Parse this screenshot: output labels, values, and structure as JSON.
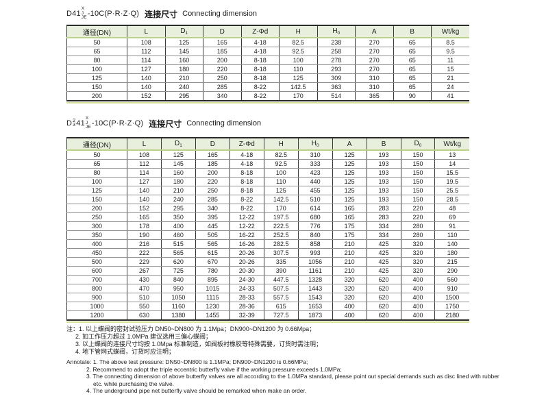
{
  "colors": {
    "header_bg": "#e8f0dd",
    "header_underline": "#b9d287",
    "table_end_bar": "#d4e29c",
    "border_dark": "#2a2a2a",
    "row_line": "#8f8f8f"
  },
  "table1": {
    "model": {
      "prefix": "D41",
      "variants": [
        "X",
        "J",
        "JE"
      ],
      "suffix": "-10C(P·R·Z·Q)"
    },
    "title_cn": "连接尺寸",
    "title_en": "Connecting dimension",
    "headers": [
      "通径(DN)",
      "L",
      "D₁",
      "D",
      "Z-Φd",
      "H",
      "H₀",
      "A",
      "B",
      "Wt/kg"
    ],
    "rows": [
      [
        "50",
        "108",
        "125",
        "165",
        "4-18",
        "82.5",
        "238",
        "270",
        "65",
        "8.5"
      ],
      [
        "65",
        "112",
        "145",
        "185",
        "4-18",
        "92.5",
        "258",
        "270",
        "65",
        "9.5"
      ],
      [
        "80",
        "114",
        "160",
        "200",
        "8-18",
        "100",
        "278",
        "270",
        "65",
        "11"
      ],
      [
        "100",
        "127",
        "180",
        "220",
        "8-18",
        "110",
        "293",
        "270",
        "65",
        "15"
      ],
      [
        "125",
        "140",
        "210",
        "250",
        "8-18",
        "125",
        "309",
        "310",
        "65",
        "21"
      ],
      [
        "150",
        "140",
        "240",
        "285",
        "8-22",
        "142.5",
        "363",
        "310",
        "65",
        "24"
      ],
      [
        "200",
        "152",
        "295",
        "340",
        "8-22",
        "170",
        "514",
        "365",
        "90",
        "41"
      ]
    ]
  },
  "table2": {
    "model": {
      "prefix": "D",
      "nums": [
        "2",
        "3"
      ],
      "mid": "41",
      "variants": [
        "X",
        "J",
        "JE"
      ],
      "suffix": "-10C(P·R·Z·Q)"
    },
    "title_cn": "连接尺寸",
    "title_en": "Connecting dimension",
    "headers": [
      "通径(DN)",
      "L",
      "D₁",
      "D",
      "Z-Φd",
      "H",
      "H₀",
      "A",
      "B",
      "D₀",
      "Wt/kg"
    ],
    "rows": [
      [
        "50",
        "108",
        "125",
        "165",
        "4-18",
        "82.5",
        "310",
        "125",
        "193",
        "150",
        "13"
      ],
      [
        "65",
        "112",
        "145",
        "185",
        "4-18",
        "92.5",
        "333",
        "125",
        "193",
        "150",
        "14"
      ],
      [
        "80",
        "114",
        "160",
        "200",
        "8-18",
        "100",
        "423",
        "125",
        "193",
        "150",
        "15.5"
      ],
      [
        "100",
        "127",
        "180",
        "220",
        "8-18",
        "110",
        "440",
        "125",
        "193",
        "150",
        "19.5"
      ],
      [
        "125",
        "140",
        "210",
        "250",
        "8-18",
        "125",
        "455",
        "125",
        "193",
        "150",
        "25.5"
      ],
      [
        "150",
        "140",
        "240",
        "285",
        "8-22",
        "142.5",
        "510",
        "125",
        "193",
        "150",
        "28.5"
      ],
      [
        "200",
        "152",
        "295",
        "340",
        "8-22",
        "170",
        "614",
        "165",
        "283",
        "220",
        "48"
      ],
      [
        "250",
        "165",
        "350",
        "395",
        "12-22",
        "197.5",
        "680",
        "165",
        "283",
        "220",
        "69"
      ],
      [
        "300",
        "178",
        "400",
        "445",
        "12-22",
        "222.5",
        "776",
        "175",
        "334",
        "280",
        "91"
      ],
      [
        "350",
        "190",
        "460",
        "505",
        "16-22",
        "252.5",
        "840",
        "175",
        "334",
        "280",
        "110"
      ],
      [
        "400",
        "216",
        "515",
        "565",
        "16-26",
        "282.5",
        "858",
        "210",
        "425",
        "320",
        "140"
      ],
      [
        "450",
        "222",
        "565",
        "615",
        "20-26",
        "307.5",
        "993",
        "210",
        "425",
        "320",
        "180"
      ],
      [
        "500",
        "229",
        "620",
        "670",
        "20-26",
        "335",
        "1056",
        "210",
        "425",
        "320",
        "215"
      ],
      [
        "600",
        "267",
        "725",
        "780",
        "20-30",
        "390",
        "1161",
        "210",
        "425",
        "320",
        "290"
      ],
      [
        "700",
        "430",
        "840",
        "895",
        "24-30",
        "447.5",
        "1328",
        "320",
        "620",
        "400",
        "560"
      ],
      [
        "800",
        "470",
        "950",
        "1015",
        "24-33",
        "507.5",
        "1443",
        "320",
        "620",
        "400",
        "910"
      ],
      [
        "900",
        "510",
        "1050",
        "1115",
        "28-33",
        "557.5",
        "1543",
        "320",
        "620",
        "400",
        "1500"
      ],
      [
        "1000",
        "550",
        "1160",
        "1230",
        "28-36",
        "615",
        "1653",
        "400",
        "620",
        "400",
        "1750"
      ],
      [
        "1200",
        "630",
        "1380",
        "1455",
        "32-39",
        "727.5",
        "1873",
        "400",
        "620",
        "400",
        "2180"
      ]
    ]
  },
  "notes_cn": [
    "注：1. 以上蝶阀的密封试验压力 DN50~DN800 为 1.1Mpa；DN900~DN1200 为 0.66Mpa；",
    "2. 如工作压力超过 1.0MPa 建议选用三偏心蝶阀；",
    "3. 以上蝶阀的连接尺寸均按 1.0Mpa 标准制造，如阀板衬橡胶等特殊需要，订货时需注明；",
    "4. 地下管网式蝶阀，订货时应注明；"
  ],
  "notes_en": [
    "Annotate: 1. The above test pressure: DN50~DN800 is 1.1MPa; DN900~DN1200 is 0.66MPa;",
    "2. Recommend to adopt the triple eccentric butterfly valve if the working pressure exceeds 1.0MPa;",
    "3. The connecting dimension of above butterfly valves are all according to the 1.0MPa standard, please point out special demands such as disc lined with rubber",
    "etc. while purchasing the valve.",
    "4. The underground pipe net butterfly valve should be remarked when make an order."
  ]
}
